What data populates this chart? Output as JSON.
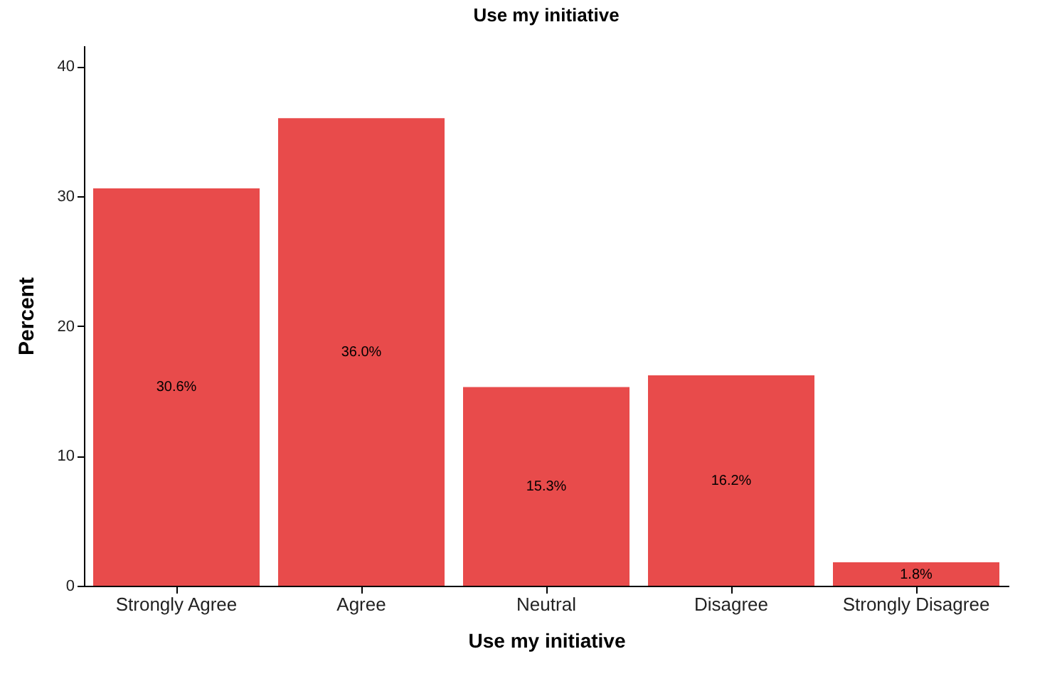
{
  "chart_data": {
    "type": "bar",
    "title": "Use my initiative",
    "xlabel": "Use my initiative",
    "ylabel": "Percent",
    "categories": [
      "Strongly Agree",
      "Agree",
      "Neutral",
      "Disagree",
      "Strongly Disagree"
    ],
    "values": [
      30.6,
      36.0,
      15.3,
      16.2,
      1.8
    ],
    "value_labels": [
      "30.6%",
      "36.0%",
      "15.3%",
      "16.2%",
      "1.8%"
    ],
    "color": "#e84b4b",
    "ylim": [
      0,
      41.6
    ],
    "yticks": [
      0,
      10,
      20,
      30,
      40
    ],
    "grid": false
  }
}
